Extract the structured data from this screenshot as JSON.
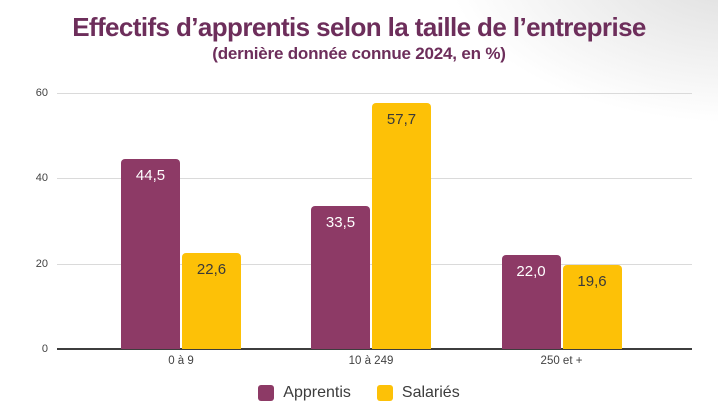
{
  "header": {
    "title": "Effectifs d’apprentis selon la taille de l’entreprise",
    "subtitle": "(dernière donnée connue 2024, en %)",
    "title_color": "#6d2e5b"
  },
  "chart_data": {
    "type": "bar",
    "title": "Effectifs d’apprentis selon la taille de l’entreprise",
    "subtitle": "(dernière donnée connue 2024, en %)",
    "categories": [
      "0 à 9",
      "10 à 249",
      "250 et +"
    ],
    "series": [
      {
        "name": "Apprentis",
        "color": "#8d3a66",
        "values": [
          44.5,
          33.5,
          22.0
        ],
        "labels": [
          "44,5",
          "33,5",
          "22,0"
        ],
        "label_color": "#ffffff"
      },
      {
        "name": "Salariés",
        "color": "#fdc107",
        "values": [
          22.6,
          57.7,
          19.6
        ],
        "labels": [
          "22,6",
          "57,7",
          "19,6"
        ],
        "label_color": "#3a3a3a"
      }
    ],
    "ylim": [
      0,
      60
    ],
    "yticks": [
      0,
      20,
      40,
      60
    ],
    "grid": true,
    "legend_position": "bottom",
    "axis_text_color": "#424242"
  }
}
